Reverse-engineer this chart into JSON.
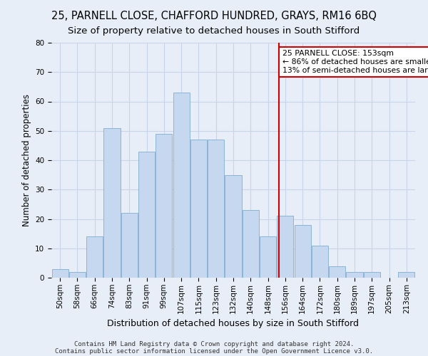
{
  "title": "25, PARNELL CLOSE, CHAFFORD HUNDRED, GRAYS, RM16 6BQ",
  "subtitle": "Size of property relative to detached houses in South Stifford",
  "xlabel": "Distribution of detached houses by size in South Stifford",
  "ylabel": "Number of detached properties",
  "bins": [
    "50sqm",
    "58sqm",
    "66sqm",
    "74sqm",
    "83sqm",
    "91sqm",
    "99sqm",
    "107sqm",
    "115sqm",
    "123sqm",
    "132sqm",
    "140sqm",
    "148sqm",
    "156sqm",
    "164sqm",
    "172sqm",
    "180sqm",
    "189sqm",
    "197sqm",
    "205sqm",
    "213sqm"
  ],
  "values": [
    3,
    2,
    14,
    51,
    22,
    43,
    49,
    63,
    47,
    47,
    35,
    23,
    14,
    21,
    18,
    11,
    4,
    2,
    2,
    0,
    2
  ],
  "bar_color": "#c5d8f0",
  "bar_edge_color": "#8ab4d8",
  "grid_color": "#c8d4e8",
  "bg_color": "#e8eef8",
  "vline_color": "#cc0000",
  "annotation_box_color": "#cc0000",
  "ylim": [
    0,
    80
  ],
  "yticks": [
    0,
    10,
    20,
    30,
    40,
    50,
    60,
    70,
    80
  ],
  "footnote1": "Contains HM Land Registry data © Crown copyright and database right 2024.",
  "footnote2": "Contains public sector information licensed under the Open Government Licence v3.0.",
  "title_fontsize": 10.5,
  "subtitle_fontsize": 9.5,
  "xlabel_fontsize": 9,
  "ylabel_fontsize": 8.5,
  "tick_fontsize": 7.5,
  "footnote_fontsize": 6.5,
  "annotation_fontsize": 7.8,
  "vline_x_index": 13
}
